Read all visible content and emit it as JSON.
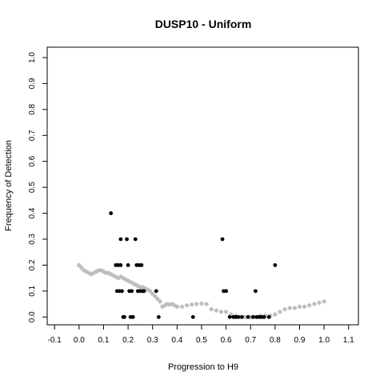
{
  "chart_data": {
    "type": "scatter",
    "title": "DUSP10 - Uniform",
    "xlabel": "Progression to H9",
    "ylabel": "Frequency of Detection",
    "xlim": [
      -0.13,
      1.14
    ],
    "ylim": [
      -0.03,
      1.04
    ],
    "x_ticks": [
      "-0.1",
      "0.0",
      "0.1",
      "0.2",
      "0.3",
      "0.4",
      "0.5",
      "0.6",
      "0.7",
      "0.8",
      "0.9",
      "1.0",
      "1.1"
    ],
    "y_ticks": [
      "0.0",
      "0.1",
      "0.2",
      "0.3",
      "0.4",
      "0.5",
      "0.6",
      "0.7",
      "0.8",
      "0.9",
      "1.0"
    ],
    "grid": false,
    "colors": {
      "points": "#000000",
      "trend": "#bebebe"
    },
    "series": [
      {
        "kind": "points",
        "x": [
          0.13,
          0.15,
          0.155,
          0.16,
          0.165,
          0.17,
          0.17,
          0.175,
          0.18,
          0.185,
          0.195,
          0.2,
          0.205,
          0.21,
          0.215,
          0.22,
          0.23,
          0.235,
          0.24,
          0.245,
          0.25,
          0.255,
          0.26,
          0.265,
          0.315,
          0.325,
          0.465,
          0.585,
          0.59,
          0.6,
          0.615,
          0.63,
          0.64,
          0.65,
          0.665,
          0.69,
          0.71,
          0.72,
          0.725,
          0.735,
          0.745,
          0.755,
          0.775,
          0.8
        ],
        "y": [
          0.4,
          0.2,
          0.1,
          0.2,
          0.1,
          0.3,
          0.2,
          0.1,
          0.0,
          0.0,
          0.3,
          0.2,
          0.1,
          0.0,
          0.1,
          0.0,
          0.3,
          0.2,
          0.1,
          0.2,
          0.1,
          0.2,
          0.1,
          0.1,
          0.1,
          0.0,
          0.0,
          0.3,
          0.1,
          0.1,
          0.0,
          0.0,
          0.0,
          0.0,
          0.0,
          0.0,
          0.0,
          0.1,
          0.0,
          0.0,
          0.0,
          0.0,
          0.0,
          0.2
        ]
      },
      {
        "kind": "trend",
        "x": [
          0.0,
          0.01,
          0.02,
          0.03,
          0.04,
          0.05,
          0.06,
          0.07,
          0.08,
          0.09,
          0.1,
          0.11,
          0.12,
          0.13,
          0.14,
          0.15,
          0.16,
          0.17,
          0.18,
          0.19,
          0.2,
          0.21,
          0.22,
          0.23,
          0.24,
          0.25,
          0.26,
          0.27,
          0.28,
          0.29,
          0.3,
          0.31,
          0.32,
          0.33,
          0.34,
          0.35,
          0.36,
          0.37,
          0.38,
          0.39,
          0.4,
          0.42,
          0.44,
          0.46,
          0.48,
          0.5,
          0.52,
          0.54,
          0.56,
          0.58,
          0.6,
          0.62,
          0.64,
          0.66,
          0.68,
          0.7,
          0.72,
          0.74,
          0.76,
          0.78,
          0.8,
          0.82,
          0.84,
          0.86,
          0.88,
          0.9,
          0.92,
          0.94,
          0.96,
          0.98,
          1.0
        ],
        "y": [
          0.2,
          0.19,
          0.18,
          0.175,
          0.17,
          0.165,
          0.17,
          0.175,
          0.18,
          0.18,
          0.175,
          0.17,
          0.17,
          0.165,
          0.16,
          0.155,
          0.15,
          0.155,
          0.15,
          0.145,
          0.14,
          0.135,
          0.13,
          0.125,
          0.12,
          0.115,
          0.115,
          0.11,
          0.105,
          0.1,
          0.09,
          0.08,
          0.07,
          0.06,
          0.04,
          0.045,
          0.05,
          0.048,
          0.05,
          0.045,
          0.04,
          0.04,
          0.045,
          0.048,
          0.05,
          0.052,
          0.05,
          0.03,
          0.025,
          0.02,
          0.02,
          0.01,
          0.005,
          0.0,
          0.0,
          0.0,
          0.0,
          0.005,
          0.005,
          0.005,
          0.01,
          0.02,
          0.03,
          0.035,
          0.035,
          0.04,
          0.04,
          0.045,
          0.05,
          0.055,
          0.06
        ]
      }
    ]
  }
}
